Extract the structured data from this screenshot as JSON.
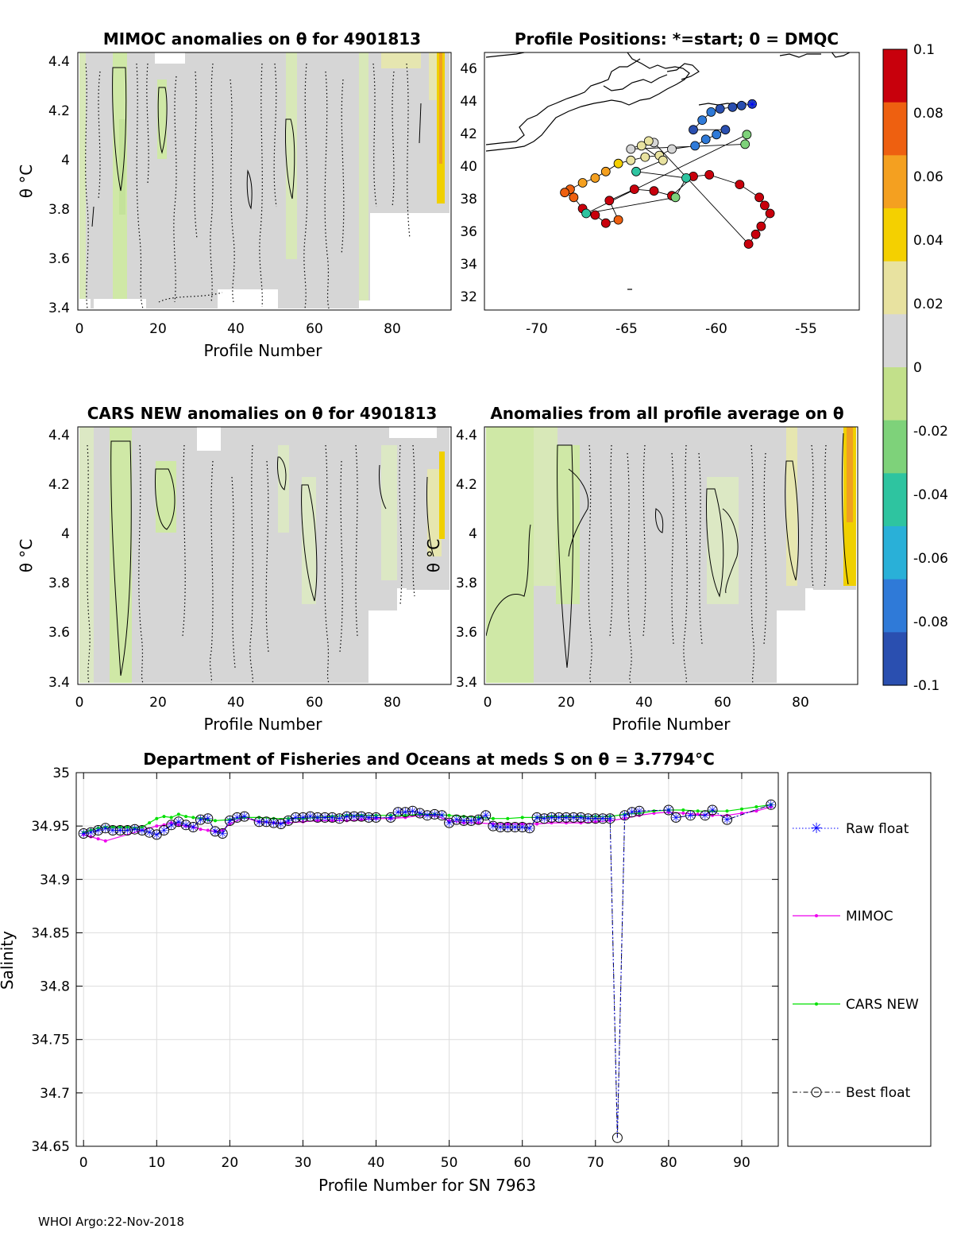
{
  "colors": {
    "gray": "#d6d6d6",
    "green": "#cfe8a6",
    "light_yellow": "#e6e6b0",
    "yellow": "#f0d000",
    "orange": "#f0a020",
    "cmap": [
      "#2a4fb0",
      "#2f7ad8",
      "#29b0d8",
      "#2ec4a0",
      "#7ed27a",
      "#c2e08a",
      "#d6d6d6",
      "#e8e2a0",
      "#f4d000",
      "#f4a020",
      "#ee6010",
      "#c8000c"
    ],
    "raw": "#0000ff",
    "mimoc": "#ee00ee",
    "cars": "#00e000",
    "best": "#000000"
  },
  "panels": {
    "mimoc": {
      "title": "MIMOC anomalies on θ  for 4901813",
      "ylabel": "θ °C",
      "xlabel": "Profile Number",
      "xticks": [
        "0",
        "20",
        "40",
        "60",
        "80"
      ],
      "yticks": [
        "3.4",
        "3.6",
        "3.8",
        "4",
        "4.2",
        "4.4"
      ]
    },
    "positions": {
      "title": "Profile Positions: *=start; 0 = DMQC",
      "xticks": [
        "-70",
        "-65",
        "-60",
        "-55"
      ],
      "yticks": [
        "32",
        "34",
        "36",
        "38",
        "40",
        "42",
        "44",
        "46"
      ]
    },
    "cars": {
      "title": "CARS NEW anomalies on θ for 4901813",
      "ylabel": "θ °C",
      "xlabel": "Profile Number",
      "xticks": [
        "0",
        "20",
        "40",
        "60",
        "80"
      ],
      "yticks": [
        "3.4",
        "3.6",
        "3.8",
        "4",
        "4.2",
        "4.4"
      ]
    },
    "average": {
      "title": "Anomalies from all profile average on θ",
      "ylabel": "θ °C",
      "xlabel": "Profile Number",
      "xticks": [
        "0",
        "20",
        "40",
        "60",
        "80"
      ],
      "yticks": [
        "3.4",
        "3.6",
        "3.8",
        "4",
        "4.2",
        "4.4"
      ]
    }
  },
  "colorbar": {
    "ticks": [
      "0.1",
      "0.08",
      "0.06",
      "0.04",
      "0.02",
      "0",
      "-0.02",
      "-0.04",
      "-0.06",
      "-0.08",
      "-0.1"
    ]
  },
  "footer": "WHOI Argo:22-Nov-2018",
  "chart_data": [
    {
      "type": "scatter",
      "title": "Profile Positions: *=start; 0 = DMQC",
      "xlim": [
        -73,
        -52
      ],
      "ylim": [
        31,
        47
      ],
      "points": [
        {
          "lon": -58.0,
          "lat": 43.8
        },
        {
          "lon": -58.6,
          "lat": 43.7
        },
        {
          "lon": -59.1,
          "lat": 43.6
        },
        {
          "lon": -59.8,
          "lat": 43.5
        },
        {
          "lon": -60.3,
          "lat": 43.3
        },
        {
          "lon": -60.8,
          "lat": 42.8
        },
        {
          "lon": -61.3,
          "lat": 42.2
        },
        {
          "lon": -59.5,
          "lat": 42.2
        },
        {
          "lon": -60.0,
          "lat": 41.9
        },
        {
          "lon": -60.6,
          "lat": 41.6
        },
        {
          "lon": -61.2,
          "lat": 41.2
        },
        {
          "lon": -62.5,
          "lat": 41.0
        },
        {
          "lon": -63.2,
          "lat": 40.6
        },
        {
          "lon": -64.0,
          "lat": 40.5
        },
        {
          "lon": -64.8,
          "lat": 40.3
        },
        {
          "lon": -65.5,
          "lat": 40.1
        },
        {
          "lon": -66.2,
          "lat": 39.6
        },
        {
          "lon": -66.8,
          "lat": 39.2
        },
        {
          "lon": -67.5,
          "lat": 38.9
        },
        {
          "lon": -68.2,
          "lat": 38.5
        },
        {
          "lon": -68.5,
          "lat": 38.3
        },
        {
          "lon": -68.0,
          "lat": 38.0
        },
        {
          "lon": -67.5,
          "lat": 37.3
        },
        {
          "lon": -66.8,
          "lat": 36.9
        },
        {
          "lon": -66.2,
          "lat": 36.4
        },
        {
          "lon": -65.5,
          "lat": 36.6
        },
        {
          "lon": -66.0,
          "lat": 37.8
        },
        {
          "lon": -64.6,
          "lat": 38.5
        },
        {
          "lon": -63.5,
          "lat": 38.4
        },
        {
          "lon": -62.5,
          "lat": 38.1
        },
        {
          "lon": -61.3,
          "lat": 39.3
        },
        {
          "lon": -60.4,
          "lat": 39.4
        },
        {
          "lon": -58.7,
          "lat": 38.8
        },
        {
          "lon": -57.6,
          "lat": 38.0
        },
        {
          "lon": -57.3,
          "lat": 37.5
        },
        {
          "lon": -57.0,
          "lat": 37.0
        },
        {
          "lon": -57.5,
          "lat": 36.2
        },
        {
          "lon": -57.8,
          "lat": 35.7
        },
        {
          "lon": -58.2,
          "lat": 35.1
        },
        {
          "lon": -63.5,
          "lat": 41.4
        },
        {
          "lon": -64.2,
          "lat": 41.2
        },
        {
          "lon": -63.0,
          "lat": 40.3
        },
        {
          "lon": -64.5,
          "lat": 39.6
        },
        {
          "lon": -61.7,
          "lat": 39.2
        },
        {
          "lon": -62.3,
          "lat": 38.0
        },
        {
          "lon": -67.3,
          "lat": 37.0
        },
        {
          "lon": -58.3,
          "lat": 41.9
        },
        {
          "lon": -58.4,
          "lat": 41.3
        },
        {
          "lon": -64.8,
          "lat": 41.0
        },
        {
          "lon": -63.8,
          "lat": 41.5
        }
      ],
      "point_values": [
        -0.09,
        -0.09,
        -0.085,
        -0.085,
        -0.08,
        -0.08,
        -0.085,
        -0.085,
        -0.08,
        -0.075,
        -0.07,
        0.015,
        0.02,
        0.025,
        0.03,
        0.04,
        0.05,
        0.06,
        0.06,
        0.07,
        0.07,
        0.075,
        0.09,
        0.09,
        0.085,
        0.08,
        0.09,
        0.095,
        0.095,
        0.1,
        0.095,
        0.095,
        0.1,
        0.1,
        0.1,
        0.1,
        0.1,
        0.1,
        0.1,
        0.015,
        0.02,
        0.03,
        -0.05,
        -0.04,
        -0.03,
        -0.05,
        -0.02,
        -0.03,
        0.01,
        0.02
      ]
    },
    {
      "type": "line",
      "title": "Department of Fisheries and Oceans at meds S on θ = 3.7794°C",
      "xlabel": "Profile Number for SN 7963",
      "ylabel": "Salinity",
      "xlim": [
        -1,
        95
      ],
      "ylim": [
        34.65,
        35
      ],
      "xticks": [
        "0",
        "10",
        "20",
        "30",
        "40",
        "50",
        "60",
        "70",
        "80",
        "90"
      ],
      "yticks": [
        "34.65",
        "34.7",
        "34.75",
        "34.8",
        "34.85",
        "34.9",
        "34.95",
        "35"
      ],
      "series": [
        {
          "name": "Raw float",
          "style": "dotted-star",
          "x": [
            0,
            1,
            2,
            3,
            4,
            5,
            6,
            7,
            8,
            9,
            10,
            11,
            12,
            13,
            14,
            15,
            16,
            17,
            18,
            19,
            20,
            21,
            22,
            24,
            25,
            26,
            27,
            28,
            29,
            30,
            31,
            32,
            33,
            34,
            35,
            36,
            37,
            38,
            39,
            40,
            42,
            43,
            44,
            45,
            46,
            47,
            48,
            49,
            50,
            51,
            52,
            53,
            54,
            55,
            56,
            57,
            58,
            59,
            60,
            61,
            62,
            63,
            64,
            65,
            66,
            67,
            68,
            69,
            70,
            71,
            72,
            73,
            74,
            75,
            76,
            80,
            81,
            83,
            85,
            86,
            88,
            94
          ],
          "y": [
            34.943,
            34.944,
            34.946,
            34.948,
            34.946,
            34.946,
            34.946,
            34.947,
            34.946,
            34.944,
            34.942,
            34.946,
            34.951,
            34.954,
            34.951,
            34.949,
            34.956,
            34.957,
            34.945,
            34.943,
            34.955,
            34.958,
            34.959,
            34.954,
            34.954,
            34.953,
            34.952,
            34.955,
            34.958,
            34.958,
            34.959,
            34.958,
            34.958,
            34.958,
            34.957,
            34.959,
            34.959,
            34.959,
            34.958,
            34.958,
            34.958,
            34.963,
            34.963,
            34.964,
            34.962,
            34.96,
            34.961,
            34.96,
            34.953,
            34.956,
            34.955,
            34.955,
            34.956,
            34.96,
            34.95,
            34.949,
            34.949,
            34.949,
            34.949,
            34.948,
            34.958,
            34.957,
            34.958,
            34.958,
            34.958,
            34.958,
            34.958,
            34.957,
            34.957,
            34.957,
            34.957,
            34.658,
            34.96,
            34.963,
            34.964,
            34.965,
            34.958,
            34.96,
            34.96,
            34.965,
            34.956,
            34.97
          ]
        },
        {
          "name": "MIMOC",
          "style": "magenta",
          "x": [
            0,
            1,
            2,
            3,
            10,
            11,
            12,
            13,
            14,
            15,
            16,
            17,
            18,
            19,
            20,
            22,
            24,
            26,
            28,
            30,
            32,
            34,
            36,
            38,
            40,
            42,
            44,
            46,
            48,
            50,
            52,
            54,
            56,
            58,
            60,
            62,
            64,
            66,
            68,
            70,
            72,
            74,
            76,
            78,
            80,
            82,
            84,
            86,
            88,
            90,
            92,
            94
          ],
          "y": [
            34.942,
            34.94,
            34.938,
            34.936,
            34.95,
            34.951,
            34.953,
            34.951,
            34.95,
            34.949,
            34.947,
            34.946,
            34.945,
            34.946,
            34.952,
            34.958,
            34.954,
            34.953,
            34.953,
            34.954,
            34.955,
            34.955,
            34.955,
            34.956,
            34.957,
            34.957,
            34.958,
            34.96,
            34.96,
            34.955,
            34.953,
            34.953,
            34.952,
            34.952,
            34.952,
            34.952,
            34.953,
            34.953,
            34.953,
            34.954,
            34.955,
            34.957,
            34.96,
            34.962,
            34.963,
            34.962,
            34.961,
            34.96,
            34.96,
            34.962,
            34.964,
            34.968
          ]
        },
        {
          "name": "CARS NEW",
          "style": "green",
          "x": [
            0,
            1,
            2,
            3,
            4,
            5,
            6,
            7,
            8,
            9,
            10,
            11,
            12,
            13,
            14,
            15,
            16,
            17,
            18,
            20,
            22,
            24,
            26,
            28,
            30,
            32,
            34,
            36,
            38,
            40,
            42,
            44,
            46,
            48,
            50,
            52,
            54,
            56,
            58,
            60,
            62,
            64,
            66,
            68,
            70,
            72,
            74,
            76,
            78,
            80,
            82,
            84,
            86,
            88,
            90,
            92,
            94
          ],
          "y": [
            34.944,
            34.946,
            34.948,
            34.949,
            34.949,
            34.949,
            34.949,
            34.948,
            34.949,
            34.953,
            34.957,
            34.959,
            34.958,
            34.961,
            34.959,
            34.958,
            34.957,
            34.956,
            34.955,
            34.956,
            34.958,
            34.958,
            34.957,
            34.957,
            34.957,
            34.958,
            34.959,
            34.96,
            34.96,
            34.96,
            34.96,
            34.96,
            34.961,
            34.961,
            34.96,
            34.959,
            34.958,
            34.957,
            34.957,
            34.958,
            34.958,
            34.959,
            34.959,
            34.959,
            34.959,
            34.959,
            34.961,
            34.962,
            34.964,
            34.965,
            34.965,
            34.964,
            34.964,
            34.964,
            34.966,
            34.968,
            34.97
          ]
        },
        {
          "name": "Best float",
          "style": "dashdot-circle",
          "x": [
            0,
            1,
            2,
            3,
            4,
            5,
            6,
            7,
            8,
            9,
            10,
            11,
            12,
            13,
            14,
            15,
            16,
            17,
            18,
            19,
            20,
            21,
            22,
            24,
            25,
            26,
            27,
            28,
            29,
            30,
            31,
            32,
            33,
            34,
            35,
            36,
            37,
            38,
            39,
            40,
            42,
            43,
            44,
            45,
            46,
            47,
            48,
            49,
            50,
            51,
            52,
            53,
            54,
            55,
            56,
            57,
            58,
            59,
            60,
            61,
            62,
            63,
            64,
            65,
            66,
            67,
            68,
            69,
            70,
            71,
            72,
            73,
            74,
            75,
            76,
            80,
            81,
            83,
            85,
            86,
            88,
            94
          ],
          "y": [
            34.943,
            34.944,
            34.946,
            34.948,
            34.946,
            34.946,
            34.946,
            34.947,
            34.946,
            34.944,
            34.942,
            34.946,
            34.951,
            34.954,
            34.951,
            34.949,
            34.956,
            34.957,
            34.945,
            34.943,
            34.955,
            34.958,
            34.959,
            34.954,
            34.954,
            34.953,
            34.952,
            34.955,
            34.958,
            34.958,
            34.959,
            34.958,
            34.958,
            34.958,
            34.957,
            34.959,
            34.959,
            34.959,
            34.958,
            34.958,
            34.958,
            34.963,
            34.963,
            34.964,
            34.962,
            34.96,
            34.961,
            34.96,
            34.953,
            34.956,
            34.955,
            34.955,
            34.956,
            34.96,
            34.95,
            34.949,
            34.949,
            34.949,
            34.949,
            34.948,
            34.958,
            34.957,
            34.958,
            34.958,
            34.958,
            34.958,
            34.958,
            34.957,
            34.957,
            34.957,
            34.957,
            34.658,
            34.96,
            34.963,
            34.964,
            34.965,
            34.958,
            34.96,
            34.96,
            34.965,
            34.956,
            34.97
          ]
        }
      ]
    }
  ]
}
